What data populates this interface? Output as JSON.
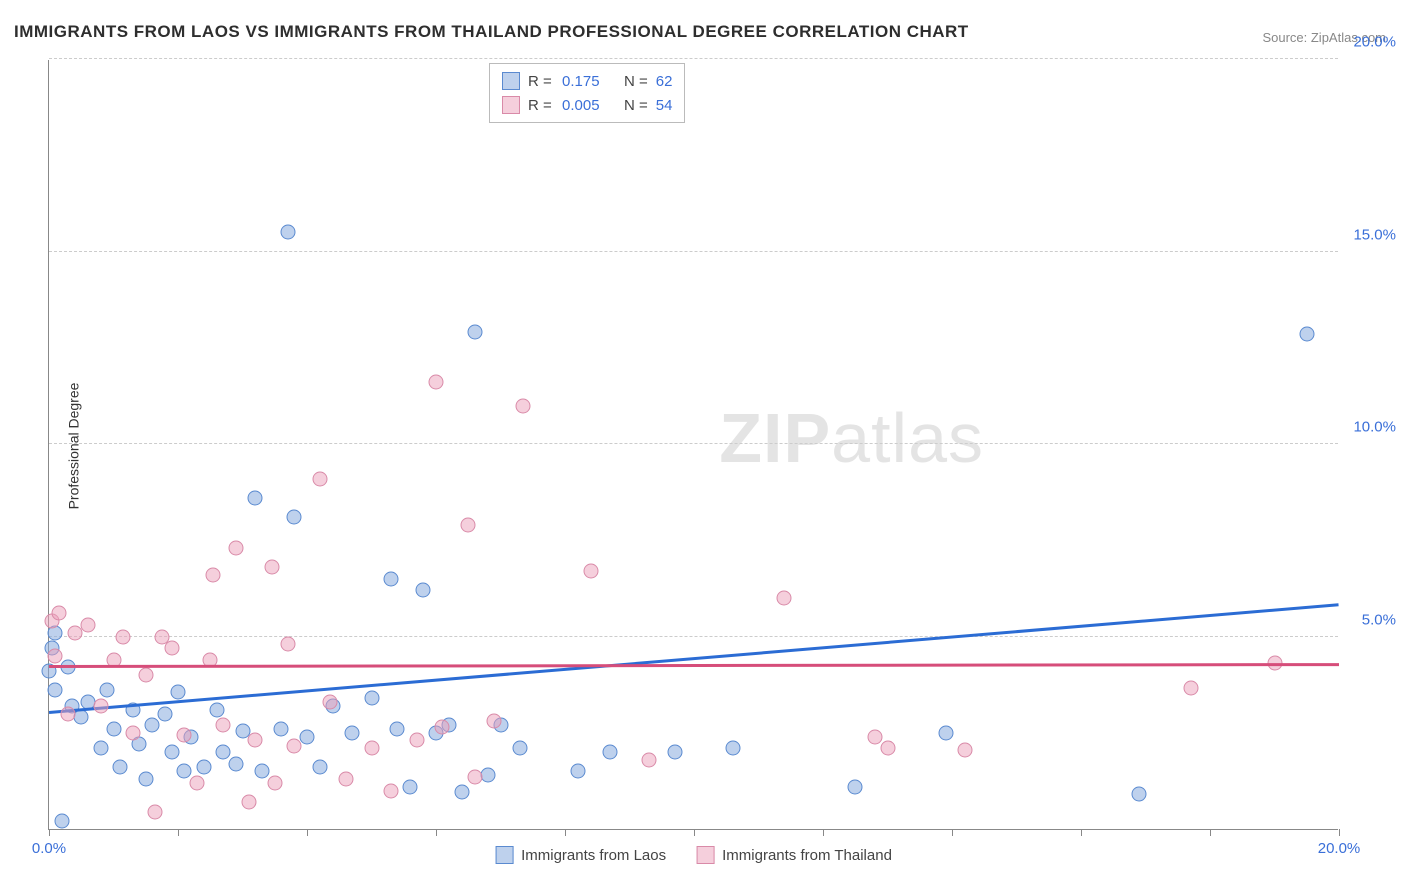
{
  "title": "IMMIGRANTS FROM LAOS VS IMMIGRANTS FROM THAILAND PROFESSIONAL DEGREE CORRELATION CHART",
  "source": "Source: ZipAtlas.com",
  "ylabel": "Professional Degree",
  "watermark_zip": "ZIP",
  "watermark_atlas": "atlas",
  "chart": {
    "type": "scatter",
    "xlim": [
      0,
      20
    ],
    "ylim": [
      0,
      20
    ],
    "yticks": [
      5,
      10,
      15,
      20
    ],
    "ytick_labels": [
      "5.0%",
      "10.0%",
      "15.0%",
      "20.0%"
    ],
    "xticks": [
      0,
      2,
      4,
      6,
      8,
      10,
      12,
      14,
      16,
      18,
      20
    ],
    "xtick_labels_shown": {
      "0": "0.0%",
      "20": "20.0%"
    },
    "background_color": "#ffffff",
    "grid_color": "#cccccc",
    "axis_color": "#888888",
    "tick_label_color": "#3a6fd8",
    "marker_radius": 7.5,
    "series": [
      {
        "name": "Immigrants from Laos",
        "fill": "rgba(137,171,222,0.55)",
        "stroke": "#5a8ad0",
        "trend_color": "#2b6cd4",
        "trend_y_at_x0": 3.0,
        "trend_y_at_xmax": 5.8,
        "R": "0.175",
        "N": "62",
        "points": [
          [
            0.0,
            4.1
          ],
          [
            0.05,
            4.7
          ],
          [
            0.1,
            5.1
          ],
          [
            0.1,
            3.6
          ],
          [
            0.2,
            0.2
          ],
          [
            0.3,
            4.2
          ],
          [
            0.35,
            3.2
          ],
          [
            0.5,
            2.9
          ],
          [
            0.6,
            3.3
          ],
          [
            0.8,
            2.1
          ],
          [
            0.9,
            3.6
          ],
          [
            1.0,
            2.6
          ],
          [
            1.1,
            1.6
          ],
          [
            1.3,
            3.1
          ],
          [
            1.4,
            2.2
          ],
          [
            1.5,
            1.3
          ],
          [
            1.6,
            2.7
          ],
          [
            1.8,
            3.0
          ],
          [
            1.9,
            2.0
          ],
          [
            2.0,
            3.55
          ],
          [
            2.1,
            1.5
          ],
          [
            2.2,
            2.4
          ],
          [
            2.4,
            1.6
          ],
          [
            2.6,
            3.1
          ],
          [
            2.7,
            2.0
          ],
          [
            2.9,
            1.7
          ],
          [
            3.0,
            2.55
          ],
          [
            3.2,
            8.6
          ],
          [
            3.3,
            1.5
          ],
          [
            3.6,
            2.6
          ],
          [
            3.7,
            15.5
          ],
          [
            3.8,
            8.1
          ],
          [
            4.0,
            2.4
          ],
          [
            4.2,
            1.6
          ],
          [
            4.4,
            3.2
          ],
          [
            4.7,
            2.5
          ],
          [
            5.0,
            3.4
          ],
          [
            5.3,
            6.5
          ],
          [
            5.4,
            2.6
          ],
          [
            5.6,
            1.1
          ],
          [
            5.8,
            6.2
          ],
          [
            6.0,
            2.5
          ],
          [
            6.2,
            2.7
          ],
          [
            6.4,
            0.95
          ],
          [
            6.6,
            12.9
          ],
          [
            6.8,
            1.4
          ],
          [
            7.0,
            2.7
          ],
          [
            7.3,
            2.1
          ],
          [
            8.2,
            1.5
          ],
          [
            8.7,
            2.0
          ],
          [
            9.7,
            2.0
          ],
          [
            10.6,
            2.1
          ],
          [
            12.5,
            1.1
          ],
          [
            13.9,
            2.5
          ],
          [
            16.9,
            0.9
          ],
          [
            19.5,
            12.85
          ]
        ]
      },
      {
        "name": "Immigrants from Thailand",
        "fill": "rgba(235,160,185,0.50)",
        "stroke": "#d98aa8",
        "trend_color": "#d64d7a",
        "trend_y_at_x0": 4.2,
        "trend_y_at_xmax": 4.25,
        "R": "0.005",
        "N": "54",
        "points": [
          [
            0.05,
            5.4
          ],
          [
            0.1,
            4.5
          ],
          [
            0.15,
            5.6
          ],
          [
            0.3,
            3.0
          ],
          [
            0.4,
            5.1
          ],
          [
            0.6,
            5.3
          ],
          [
            0.8,
            3.2
          ],
          [
            1.0,
            4.4
          ],
          [
            1.15,
            5.0
          ],
          [
            1.3,
            2.5
          ],
          [
            1.5,
            4.0
          ],
          [
            1.65,
            0.45
          ],
          [
            1.75,
            5.0
          ],
          [
            1.9,
            4.7
          ],
          [
            2.1,
            2.45
          ],
          [
            2.3,
            1.2
          ],
          [
            2.5,
            4.4
          ],
          [
            2.55,
            6.6
          ],
          [
            2.7,
            2.7
          ],
          [
            2.9,
            7.3
          ],
          [
            3.1,
            0.7
          ],
          [
            3.2,
            2.3
          ],
          [
            3.45,
            6.8
          ],
          [
            3.5,
            1.2
          ],
          [
            3.7,
            4.8
          ],
          [
            3.8,
            2.15
          ],
          [
            4.2,
            9.1
          ],
          [
            4.35,
            3.3
          ],
          [
            4.6,
            1.3
          ],
          [
            5.0,
            2.1
          ],
          [
            5.3,
            1.0
          ],
          [
            5.7,
            2.3
          ],
          [
            6.0,
            11.6
          ],
          [
            6.1,
            2.65
          ],
          [
            6.5,
            7.9
          ],
          [
            6.6,
            1.35
          ],
          [
            6.9,
            2.8
          ],
          [
            7.35,
            11.0
          ],
          [
            8.4,
            6.7
          ],
          [
            9.3,
            1.8
          ],
          [
            11.4,
            6.0
          ],
          [
            12.8,
            2.4
          ],
          [
            13.0,
            2.1
          ],
          [
            14.2,
            2.05
          ],
          [
            17.7,
            3.65
          ],
          [
            19.0,
            4.3
          ]
        ]
      }
    ]
  },
  "legend": [
    {
      "label": "Immigrants from Laos",
      "fill": "rgba(137,171,222,0.55)",
      "stroke": "#5a8ad0"
    },
    {
      "label": "Immigrants from Thailand",
      "fill": "rgba(235,160,185,0.50)",
      "stroke": "#d98aa8"
    }
  ]
}
